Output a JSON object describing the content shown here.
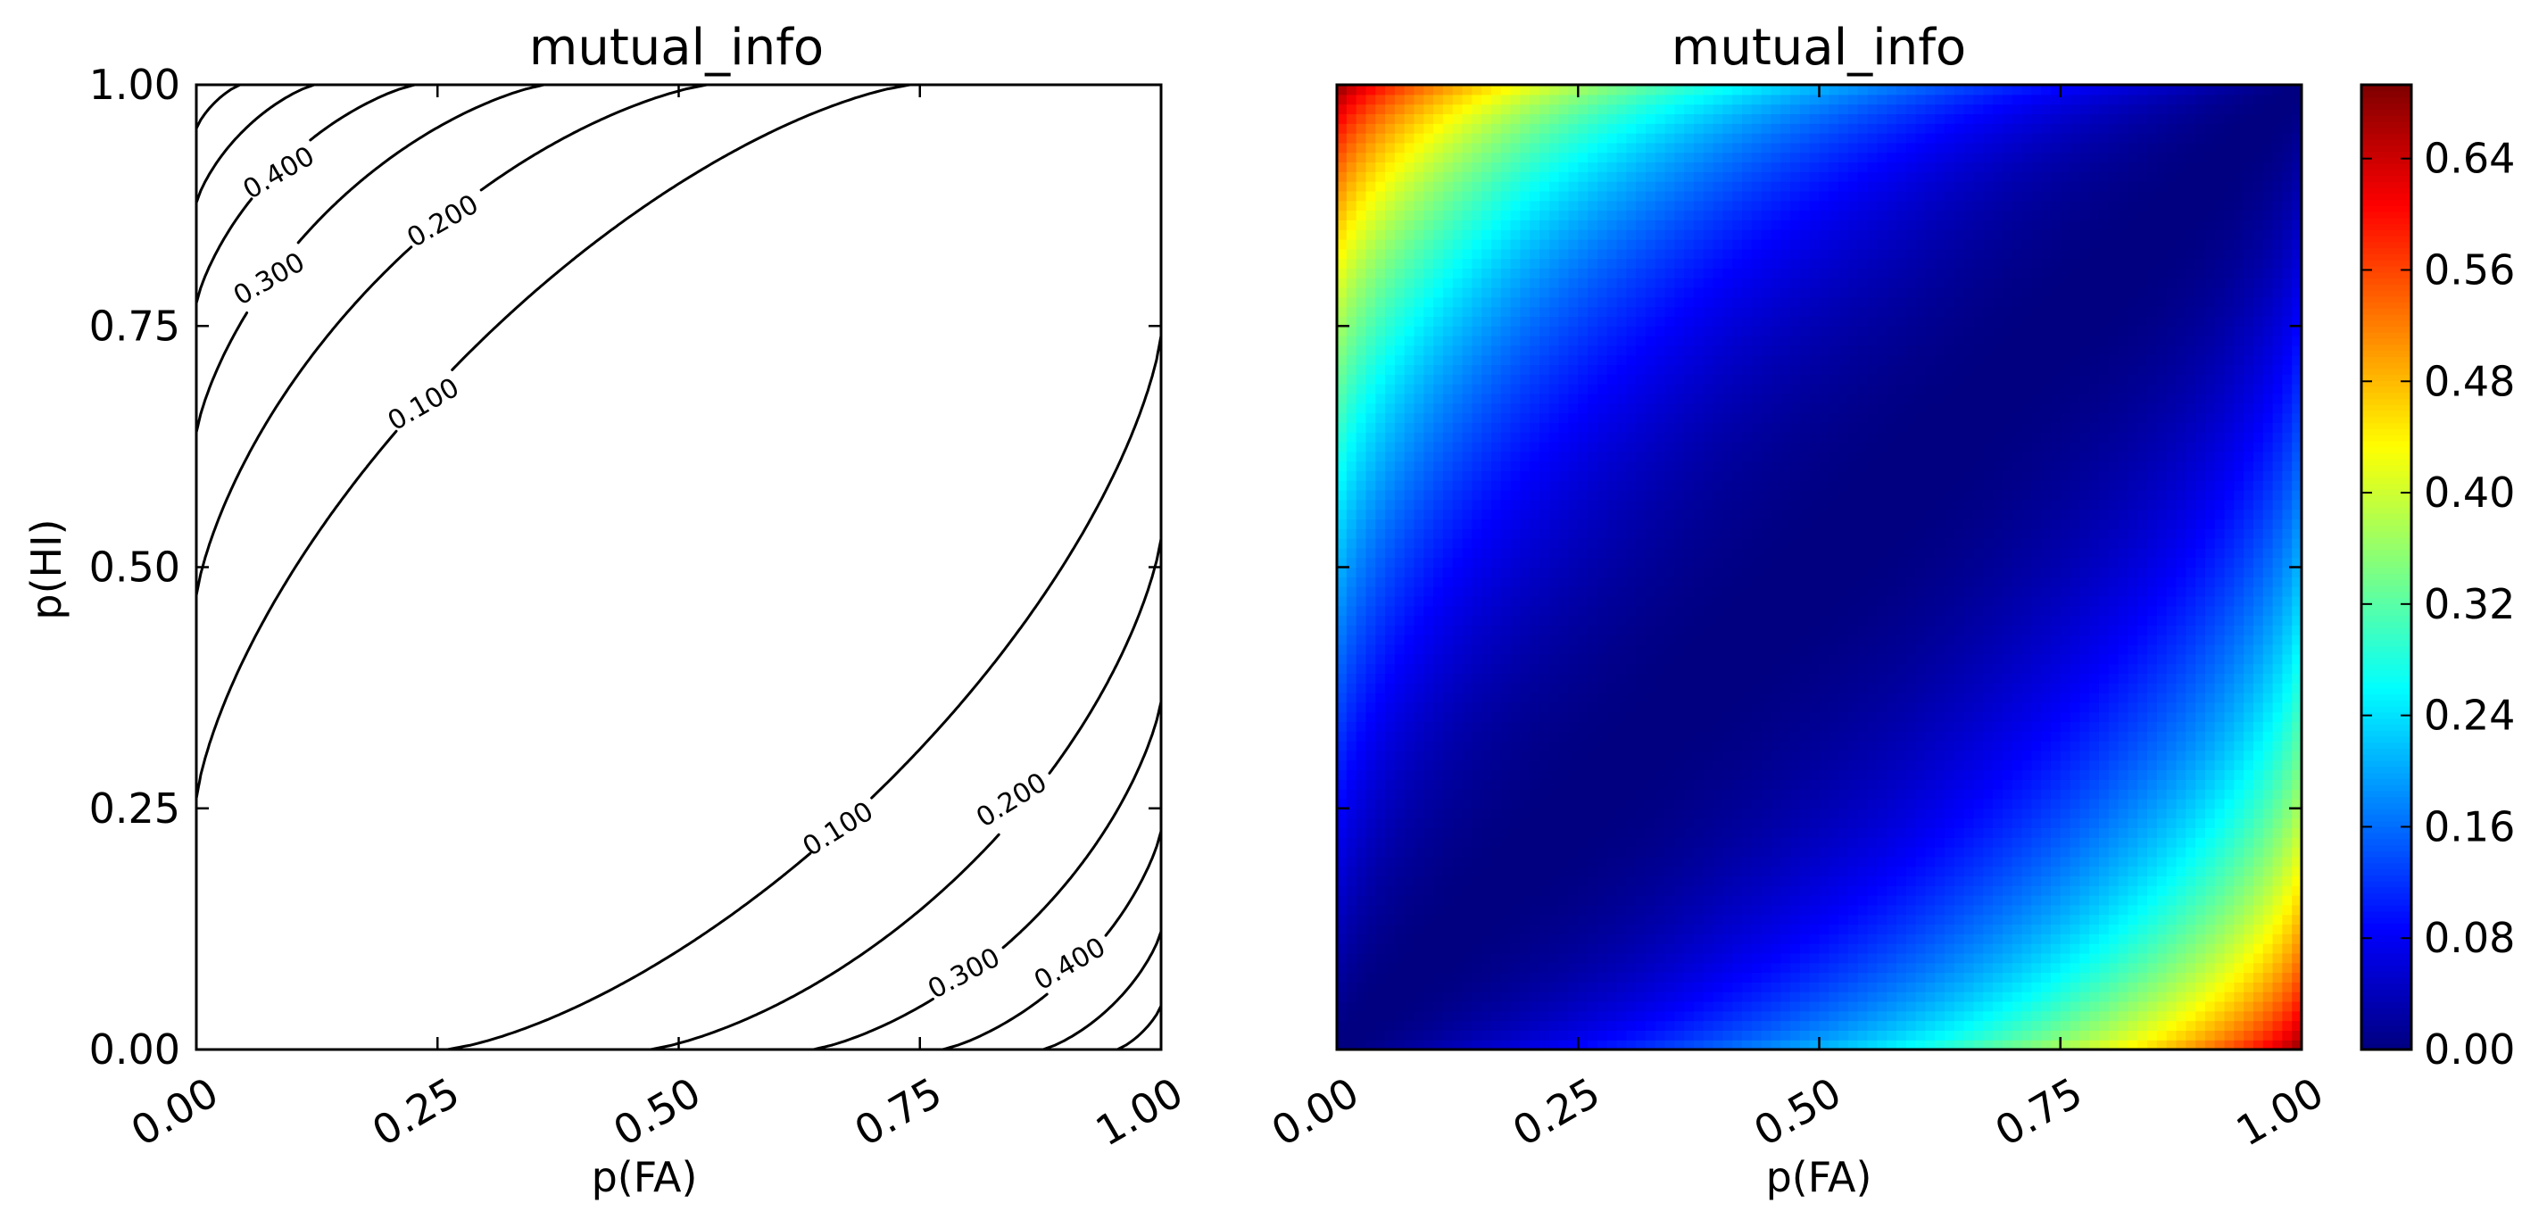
{
  "chart_data": [
    {
      "type": "contour",
      "title": "mutual_info",
      "xlabel": "p(FA)",
      "ylabel": "p(HI)",
      "xlim": [
        0,
        1
      ],
      "ylim": [
        0,
        1
      ],
      "x_ticks": [
        "0.00",
        "0.25",
        "0.50",
        "0.75",
        "1.00"
      ],
      "y_ticks": [
        "0.00",
        "0.25",
        "0.50",
        "0.75",
        "1.00"
      ],
      "contour_levels": [
        0.1,
        0.2,
        0.3,
        0.4,
        0.5,
        0.6
      ],
      "contour_labels": [
        "0.100",
        "0.200",
        "0.300",
        "0.400"
      ],
      "line_color": "#000000",
      "grid": false
    },
    {
      "type": "heatmap",
      "title": "mutual_info",
      "xlabel": "p(FA)",
      "xlim": [
        0,
        1
      ],
      "ylim": [
        0,
        1
      ],
      "x_ticks": [
        "0.00",
        "0.25",
        "0.50",
        "0.75",
        "1.00"
      ],
      "colormap": "jet",
      "vmin": 0,
      "vmax": 0.693,
      "colorbar_ticks": [
        "0.00",
        "0.08",
        "0.16",
        "0.24",
        "0.32",
        "0.40",
        "0.48",
        "0.56",
        "0.64"
      ],
      "grid_resolution": 100,
      "grid": false
    }
  ]
}
